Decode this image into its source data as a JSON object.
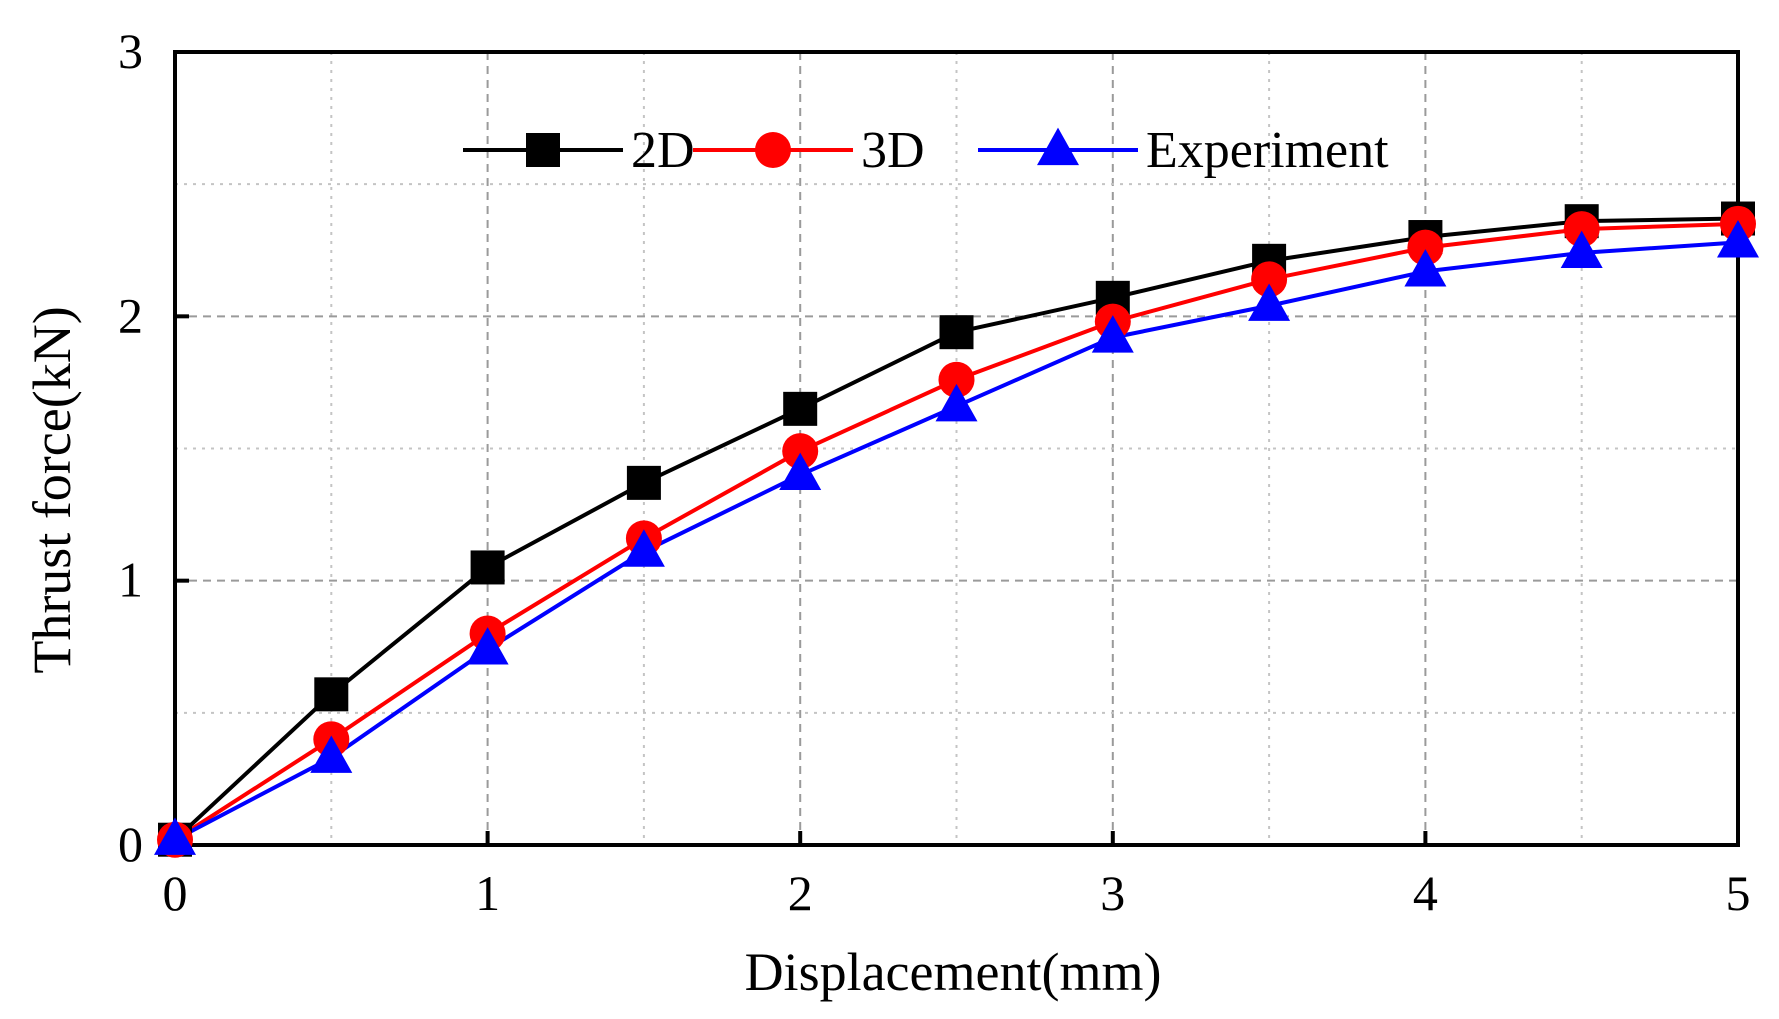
{
  "chart_data": {
    "type": "line",
    "title": "",
    "xlabel": "Displacement(mm)",
    "ylabel": "Thrust force(kN)",
    "xlim": [
      0,
      5
    ],
    "ylim": [
      0,
      3
    ],
    "xticks": [
      0,
      1,
      2,
      3,
      4,
      5
    ],
    "yticks": [
      0,
      1,
      2,
      3
    ],
    "xtick_labels": [
      "0",
      "1",
      "2",
      "3",
      "4",
      "5"
    ],
    "ytick_labels": [
      "0",
      "1",
      "2",
      "3"
    ],
    "grid": true,
    "legend_position": "top",
    "x": [
      0,
      0.5,
      1,
      1.5,
      2,
      2.5,
      3,
      3.5,
      4,
      4.5,
      5
    ],
    "series": [
      {
        "name": "2D",
        "color": "#000000",
        "marker": "square",
        "values": [
          0.02,
          0.57,
          1.05,
          1.37,
          1.65,
          1.94,
          2.07,
          2.21,
          2.3,
          2.36,
          2.37
        ]
      },
      {
        "name": "3D",
        "color": "#ff0000",
        "marker": "circle",
        "values": [
          0.02,
          0.4,
          0.8,
          1.16,
          1.49,
          1.76,
          1.98,
          2.14,
          2.26,
          2.33,
          2.35
        ]
      },
      {
        "name": "Experiment",
        "color": "#0000ff",
        "marker": "triangle",
        "values": [
          0.02,
          0.33,
          0.74,
          1.11,
          1.4,
          1.66,
          1.92,
          2.04,
          2.17,
          2.24,
          2.28
        ]
      }
    ]
  }
}
